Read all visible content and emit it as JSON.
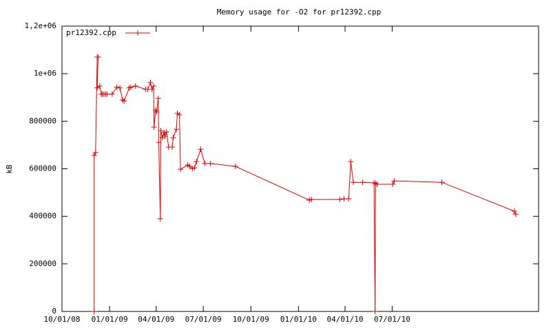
{
  "chart_data": {
    "type": "line",
    "title": "Memory usage for -O2 for pr12392.cpp",
    "y_label": "kB",
    "x": [
      "12/02/08",
      "12/02/08",
      "12/05/08",
      "12/08/08",
      "12/10/08",
      "12/08/08",
      "12/13/08",
      "12/16/08",
      "12/18/08",
      "12/21/08",
      "12/24/08",
      "12/27/08",
      "01/06/09",
      "01/15/09",
      "01/21/09",
      "01/26/09",
      "01/29/09",
      "02/08/09",
      "02/11/09",
      "02/20/09",
      "03/12/09",
      "03/16/09",
      "03/21/09",
      "03/24/09",
      "03/27/09",
      "03/28/09",
      "03/31/09",
      "04/02/09",
      "04/05/09",
      "04/06/09",
      "04/09/09",
      "04/10/09",
      "04/13/09",
      "04/16/09",
      "04/18/09",
      "04/21/09",
      "04/25/09",
      "05/02/09",
      "05/04/09",
      "05/10/09",
      "05/12/09",
      "05/16/09",
      "05/18/09",
      "06/01/09",
      "06/05/09",
      "06/10/09",
      "06/14/09",
      "06/18/09",
      "06/26/09",
      "07/04/09",
      "07/15/09",
      "09/01/09",
      "01/22/10",
      "01/26/10",
      "03/22/10",
      "03/30/10",
      "04/08/10",
      "04/12/10",
      "04/17/10",
      "05/05/10",
      "05/27/10",
      "05/29/10",
      "05/30/10",
      "06/02/10",
      "07/02/10",
      "07/05/10",
      "10/05/10",
      "02/22/11",
      "02/25/11"
    ],
    "series": [
      {
        "name": "pr12392.cpp",
        "color": "#e00000",
        "values": [
          0,
          656000,
          668000,
          1070000,
          1070000,
          940000,
          948000,
          914000,
          914000,
          914000,
          914000,
          914000,
          914000,
          943000,
          940000,
          890000,
          885000,
          940000,
          943000,
          948000,
          934000,
          934000,
          963000,
          934000,
          948000,
          775000,
          847000,
          839000,
          896000,
          711000,
          390000,
          760000,
          731000,
          752000,
          737000,
          755000,
          691000,
          691000,
          731000,
          766000,
          833000,
          827000,
          598000,
          616000,
          610000,
          601000,
          604000,
          630000,
          682000,
          622000,
          622000,
          610000,
          468000,
          471000,
          471000,
          474000,
          474000,
          630000,
          543000,
          543000,
          541000,
          0,
          538000,
          535000,
          535000,
          549000,
          543000,
          422000,
          408000
        ]
      }
    ],
    "xlim": [
      "10/01/08",
      "04/10/11"
    ],
    "xticks": [
      "10/01/08",
      "01/01/09",
      "04/01/09",
      "07/01/09",
      "10/01/09",
      "01/01/10",
      "04/01/10",
      "07/01/10"
    ],
    "ylim": [
      0,
      1200000
    ],
    "yticks": [
      0,
      200000,
      400000,
      600000,
      800000,
      {
        "value": 1000000,
        "label": "1e+06"
      },
      {
        "value": 1200000,
        "label": "1,2e+06"
      }
    ],
    "legend": "top-left"
  }
}
